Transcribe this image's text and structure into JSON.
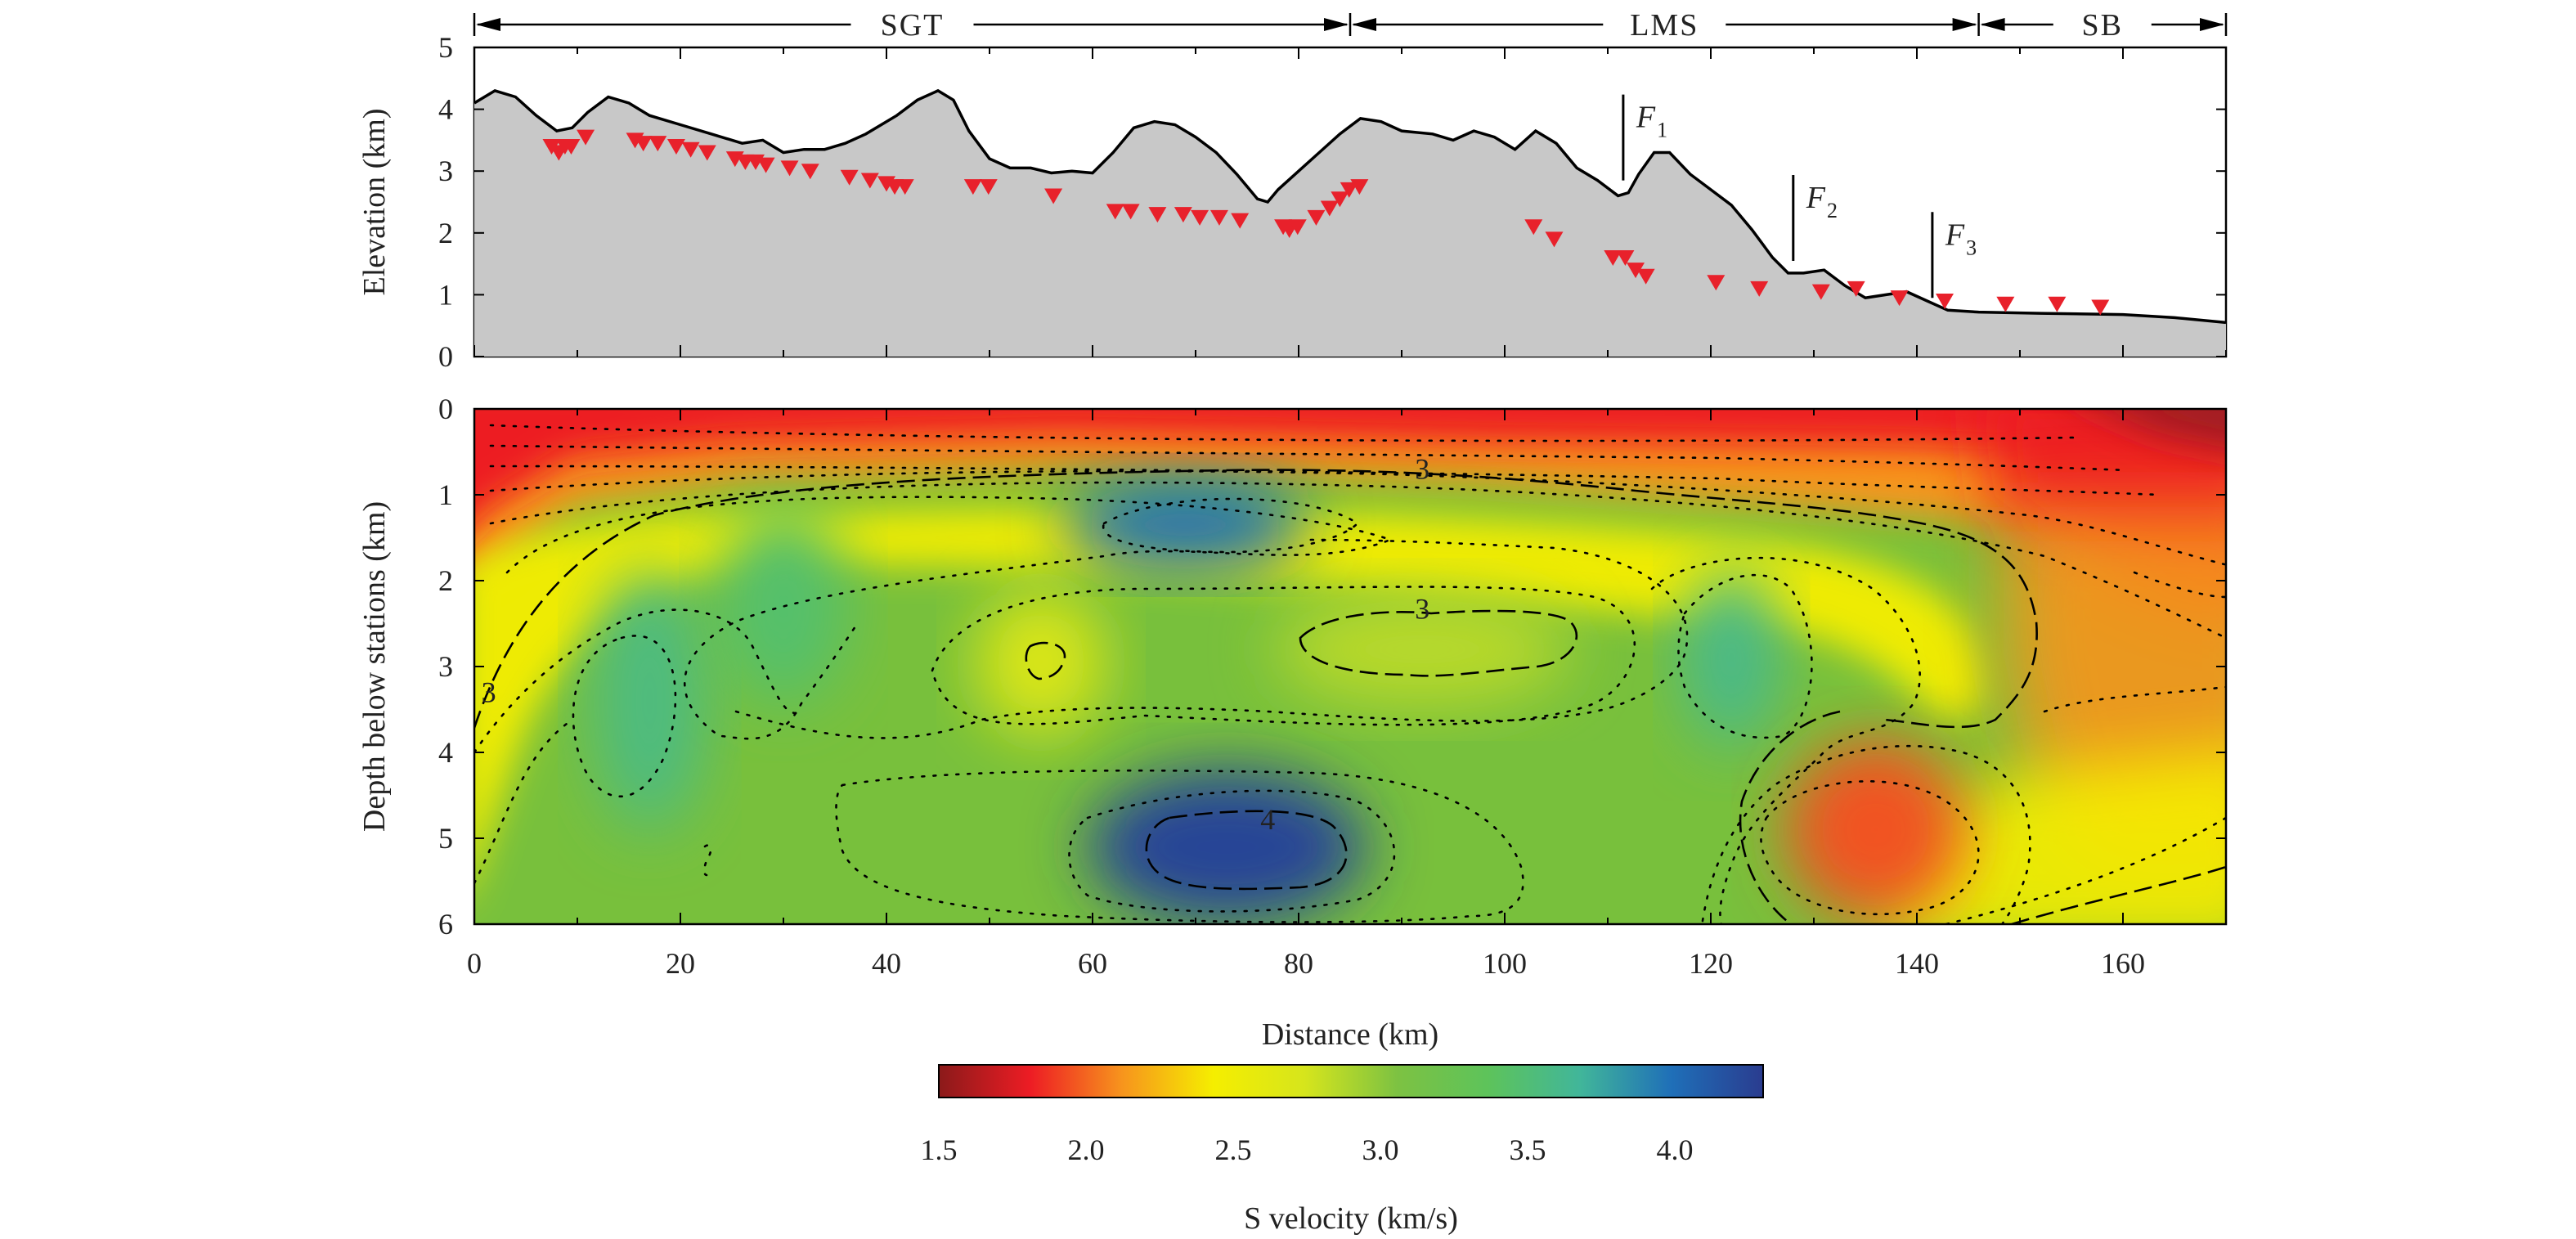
{
  "chart_data": [
    {
      "type": "area",
      "name": "elevation-profile",
      "ylabel": "Elevation (km)",
      "xlim": [
        0,
        170
      ],
      "ylim": [
        0,
        5
      ],
      "yticks": [
        "0",
        "1",
        "2",
        "3",
        "4",
        "5"
      ],
      "regions": [
        {
          "label": "SGT",
          "start": 0,
          "end": 85
        },
        {
          "label": "LMS",
          "start": 85,
          "end": 146
        },
        {
          "label": "SB",
          "start": 146,
          "end": 170
        }
      ],
      "faults": [
        {
          "label": "F",
          "sub": "1",
          "x": 111.5
        },
        {
          "label": "F",
          "sub": "2",
          "x": 128
        },
        {
          "label": "F",
          "sub": "3",
          "x": 141.5
        }
      ],
      "surface": [
        [
          0,
          4.1
        ],
        [
          2,
          4.3
        ],
        [
          4,
          4.2
        ],
        [
          6,
          3.9
        ],
        [
          8,
          3.65
        ],
        [
          9.5,
          3.7
        ],
        [
          11,
          3.95
        ],
        [
          13,
          4.2
        ],
        [
          15,
          4.1
        ],
        [
          17,
          3.9
        ],
        [
          20,
          3.75
        ],
        [
          23,
          3.6
        ],
        [
          26,
          3.45
        ],
        [
          28,
          3.5
        ],
        [
          30,
          3.3
        ],
        [
          32,
          3.35
        ],
        [
          34,
          3.35
        ],
        [
          36,
          3.45
        ],
        [
          38,
          3.6
        ],
        [
          41,
          3.9
        ],
        [
          43,
          4.15
        ],
        [
          45,
          4.3
        ],
        [
          46.5,
          4.15
        ],
        [
          48,
          3.65
        ],
        [
          50,
          3.2
        ],
        [
          52,
          3.05
        ],
        [
          54,
          3.05
        ],
        [
          56,
          2.97
        ],
        [
          58,
          3.0
        ],
        [
          60,
          2.97
        ],
        [
          62,
          3.3
        ],
        [
          64,
          3.7
        ],
        [
          66,
          3.8
        ],
        [
          68,
          3.75
        ],
        [
          70,
          3.55
        ],
        [
          72,
          3.3
        ],
        [
          74,
          2.95
        ],
        [
          76,
          2.55
        ],
        [
          77,
          2.5
        ],
        [
          78,
          2.7
        ],
        [
          80,
          3.0
        ],
        [
          82,
          3.3
        ],
        [
          84,
          3.6
        ],
        [
          86,
          3.85
        ],
        [
          88,
          3.8
        ],
        [
          90,
          3.65
        ],
        [
          93,
          3.6
        ],
        [
          95,
          3.5
        ],
        [
          97,
          3.65
        ],
        [
          99,
          3.55
        ],
        [
          101,
          3.35
        ],
        [
          103,
          3.65
        ],
        [
          105,
          3.45
        ],
        [
          107,
          3.05
        ],
        [
          109,
          2.85
        ],
        [
          111,
          2.6
        ],
        [
          112,
          2.65
        ],
        [
          113,
          2.95
        ],
        [
          114.5,
          3.3
        ],
        [
          116,
          3.3
        ],
        [
          118,
          2.95
        ],
        [
          120,
          2.7
        ],
        [
          122,
          2.45
        ],
        [
          124,
          2.05
        ],
        [
          126,
          1.6
        ],
        [
          127.5,
          1.35
        ],
        [
          129,
          1.35
        ],
        [
          131,
          1.4
        ],
        [
          133,
          1.15
        ],
        [
          135,
          0.95
        ],
        [
          137,
          1.0
        ],
        [
          139,
          1.05
        ],
        [
          141,
          0.9
        ],
        [
          143,
          0.75
        ],
        [
          146,
          0.72
        ],
        [
          152,
          0.7
        ],
        [
          160,
          0.68
        ],
        [
          165,
          0.63
        ],
        [
          170,
          0.55
        ]
      ],
      "stations": [
        [
          7.5,
          3.4
        ],
        [
          8.2,
          3.3
        ],
        [
          8.8,
          3.4
        ],
        [
          9.4,
          3.4
        ],
        [
          10.8,
          3.55
        ],
        [
          15.6,
          3.5
        ],
        [
          16.4,
          3.45
        ],
        [
          17.8,
          3.45
        ],
        [
          19.6,
          3.4
        ],
        [
          21,
          3.35
        ],
        [
          22.6,
          3.3
        ],
        [
          25.3,
          3.2
        ],
        [
          26.3,
          3.15
        ],
        [
          27.3,
          3.15
        ],
        [
          28.3,
          3.1
        ],
        [
          30.6,
          3.05
        ],
        [
          32.6,
          3.0
        ],
        [
          36.4,
          2.9
        ],
        [
          38.4,
          2.85
        ],
        [
          40,
          2.8
        ],
        [
          40.8,
          2.75
        ],
        [
          41.8,
          2.75
        ],
        [
          48.4,
          2.75
        ],
        [
          49.9,
          2.75
        ],
        [
          56.2,
          2.6
        ],
        [
          62.2,
          2.35
        ],
        [
          63.7,
          2.35
        ],
        [
          66.3,
          2.3
        ],
        [
          68.8,
          2.3
        ],
        [
          70.4,
          2.25
        ],
        [
          72.3,
          2.25
        ],
        [
          74.3,
          2.2
        ],
        [
          78.5,
          2.1
        ],
        [
          79.1,
          2.05
        ],
        [
          79.9,
          2.1
        ],
        [
          81.7,
          2.25
        ],
        [
          83,
          2.4
        ],
        [
          84,
          2.55
        ],
        [
          84.9,
          2.7
        ],
        [
          85.9,
          2.75
        ],
        [
          102.8,
          2.1
        ],
        [
          104.8,
          1.9
        ],
        [
          110.5,
          1.6
        ],
        [
          111.7,
          1.6
        ],
        [
          112.7,
          1.4
        ],
        [
          113.7,
          1.3
        ],
        [
          120.5,
          1.2
        ],
        [
          124.7,
          1.1
        ],
        [
          130.7,
          1.05
        ],
        [
          134.1,
          1.1
        ],
        [
          138.3,
          0.95
        ],
        [
          142.7,
          0.9
        ],
        [
          148.6,
          0.85
        ],
        [
          153.6,
          0.85
        ],
        [
          157.8,
          0.8
        ]
      ]
    },
    {
      "type": "heatmap",
      "name": "shear-velocity-section",
      "xlabel": "Distance (km)",
      "ylabel": "Depth below stations (km)",
      "xlim": [
        0,
        170
      ],
      "ylim": [
        0,
        6
      ],
      "xticks": [
        "0",
        "20",
        "40",
        "60",
        "80",
        "100",
        "120",
        "140",
        "160"
      ],
      "yticks": [
        "0",
        "1",
        "2",
        "3",
        "4",
        "5",
        "6"
      ],
      "contour_labels": [
        {
          "text": "3",
          "x": 92,
          "y": 0.7
        },
        {
          "text": "3",
          "x": 92,
          "y": 2.33
        },
        {
          "text": "3",
          "x": 1.4,
          "y": 3.3
        },
        {
          "text": "4",
          "x": 77,
          "y": 4.78
        }
      ],
      "anomalies": [
        {
          "x": 69,
          "y": 1.35,
          "vs": 4.0
        },
        {
          "x": 73,
          "y": 5.1,
          "vs": 4.25
        },
        {
          "x": 17,
          "y": 3.4,
          "vs": 3.55
        },
        {
          "x": 30,
          "y": 2.3,
          "vs": 3.45
        },
        {
          "x": 122,
          "y": 2.9,
          "vs": 3.6
        },
        {
          "x": 55,
          "y": 2.95,
          "vs": 2.7
        },
        {
          "x": 92,
          "y": 2.8,
          "vs": 2.85
        },
        {
          "x": 136,
          "y": 4.9,
          "vs": 1.95
        }
      ],
      "colorbar": {
        "label": "S velocity (km/s)",
        "range": [
          1.5,
          4.3
        ],
        "ticks": [
          "1.5",
          "2.0",
          "2.5",
          "3.0",
          "3.5",
          "4.0"
        ],
        "colors": [
          "#8b1a1a",
          "#ed1c24",
          "#f7941d",
          "#f5ee00",
          "#d6e51c",
          "#7dc242",
          "#5dc35b",
          "#41b69a",
          "#1f6fb8",
          "#2a3c8f"
        ]
      }
    }
  ]
}
